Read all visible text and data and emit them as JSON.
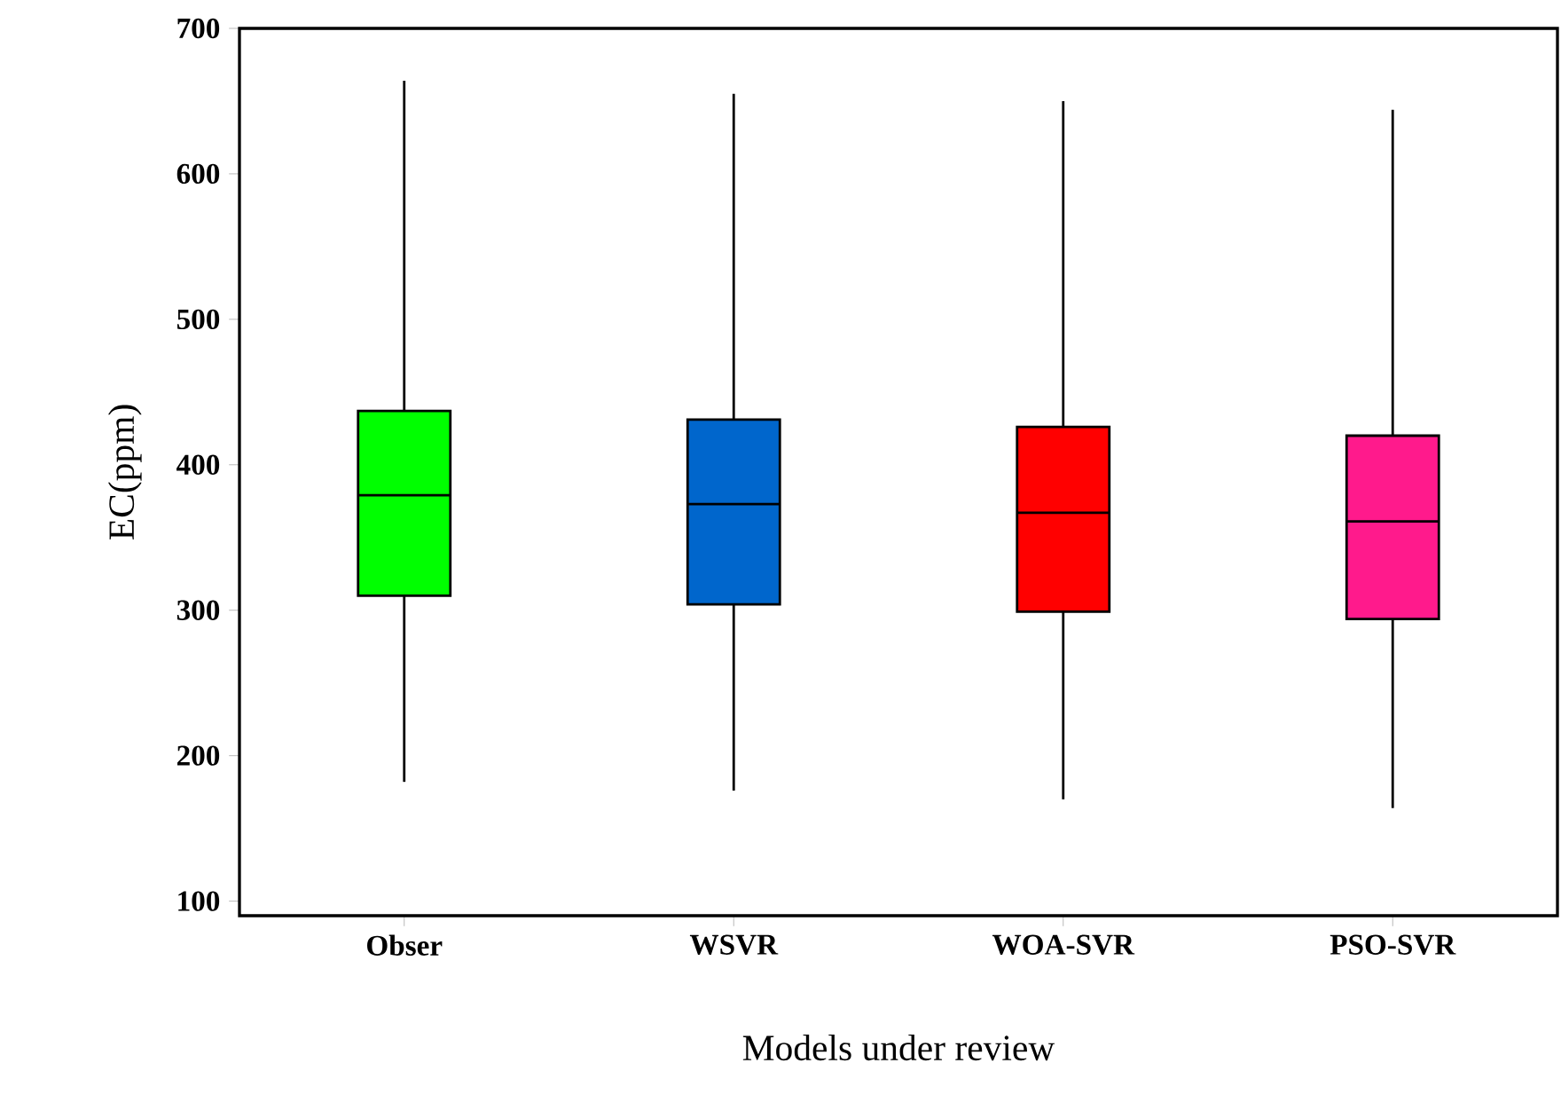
{
  "chart_data": {
    "type": "box",
    "xlabel": "Models under review",
    "ylabel": "EC(ppm)",
    "categories": [
      "Obser",
      "WSVR",
      "WOA-SVR",
      "PSO-SVR"
    ],
    "colors": [
      "#00ff00",
      "#0066cc",
      "#ff0000",
      "#ff1a8c"
    ],
    "boxes": [
      {
        "low": 182,
        "q1": 310,
        "median": 379,
        "q3": 437,
        "high": 664
      },
      {
        "low": 176,
        "q1": 304,
        "median": 373,
        "q3": 431,
        "high": 655
      },
      {
        "low": 170,
        "q1": 299,
        "median": 367,
        "q3": 426,
        "high": 650
      },
      {
        "low": 164,
        "q1": 294,
        "median": 361,
        "q3": 420,
        "high": 644
      }
    ],
    "ylim": [
      90,
      700
    ],
    "yticks": [
      100,
      200,
      300,
      400,
      500,
      600,
      700
    ]
  }
}
